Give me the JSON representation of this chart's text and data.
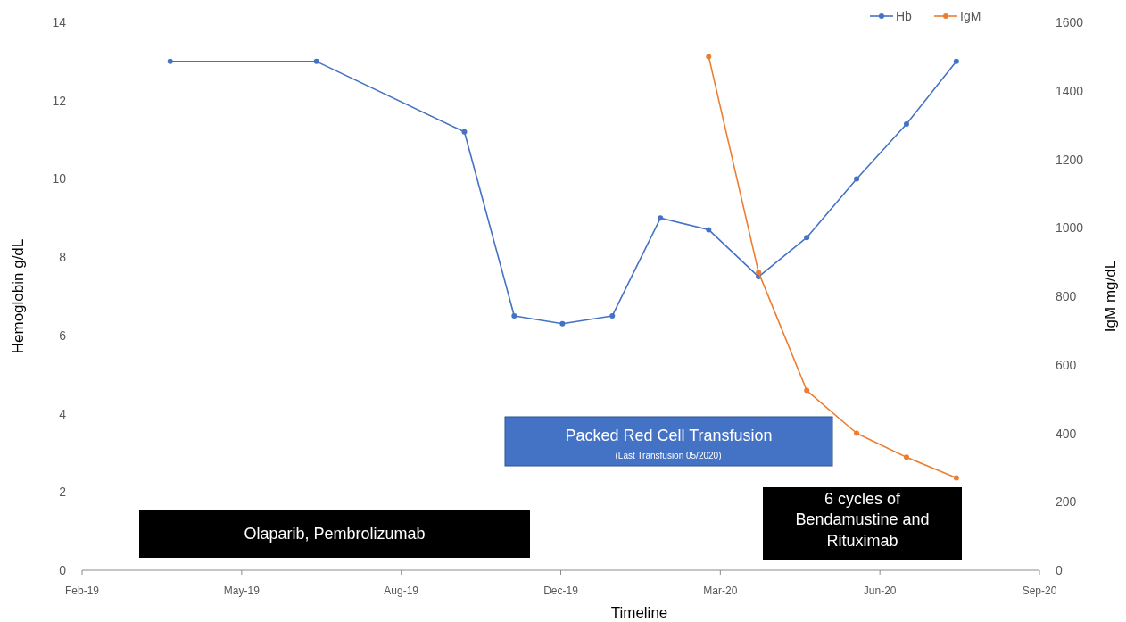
{
  "chart_data": {
    "type": "line",
    "xlabel": "Timeline",
    "ylabel": "Hemoglobin g/dL",
    "y2label": "IgM mg/dL",
    "xlim": [
      "2019-02-20",
      "2020-09-18"
    ],
    "xticks": [
      {
        "value": "2019-02-20",
        "label": "Feb-19"
      },
      {
        "value": "2019-05-27",
        "label": "May-19"
      },
      {
        "value": "2019-08-31",
        "label": "Aug-19"
      },
      {
        "value": "2019-12-05",
        "label": "Dec-19"
      },
      {
        "value": "2020-03-10",
        "label": "Mar-20"
      },
      {
        "value": "2020-06-14",
        "label": "Jun-20"
      },
      {
        "value": "2020-09-18",
        "label": "Sep-20"
      }
    ],
    "ylim": [
      0,
      14
    ],
    "yticks": [
      0,
      2,
      4,
      6,
      8,
      10,
      12,
      14
    ],
    "y2lim": [
      0,
      1600
    ],
    "y2ticks": [
      0,
      200,
      400,
      600,
      800,
      1000,
      1200,
      1400,
      1600
    ],
    "marker": "circle",
    "legend": "top right",
    "grid": false,
    "series": [
      {
        "name": "Hb",
        "color": "#4472c4",
        "x": [
          "2019-04-14",
          "2019-07-11",
          "2019-10-08",
          "2019-11-07",
          "2019-12-06",
          "2020-01-05",
          "2020-02-03",
          "2020-03-03",
          "2020-04-02",
          "2020-05-01",
          "2020-05-31",
          "2020-06-30",
          "2020-07-30"
        ],
        "values": [
          13,
          13,
          11.2,
          6.5,
          6.3,
          6.5,
          9,
          8.7,
          7.5,
          8.5,
          10,
          11.4,
          13
        ]
      },
      {
        "name": "IgM",
        "color": "#ed7d31",
        "axis": "y2",
        "x": [
          "2020-03-03",
          "2020-04-02",
          "2020-05-01",
          "2020-05-31",
          "2020-06-30",
          "2020-07-30"
        ],
        "values": [
          1500,
          870,
          525,
          400,
          330,
          270
        ]
      }
    ],
    "annotations": [
      "Olaparib, Pembrolizumab",
      "Packed Red Cell Transfusion",
      "(Last Transfusion 05/2020)",
      "6 cycles of Bendamustine and Rituximab"
    ]
  }
}
